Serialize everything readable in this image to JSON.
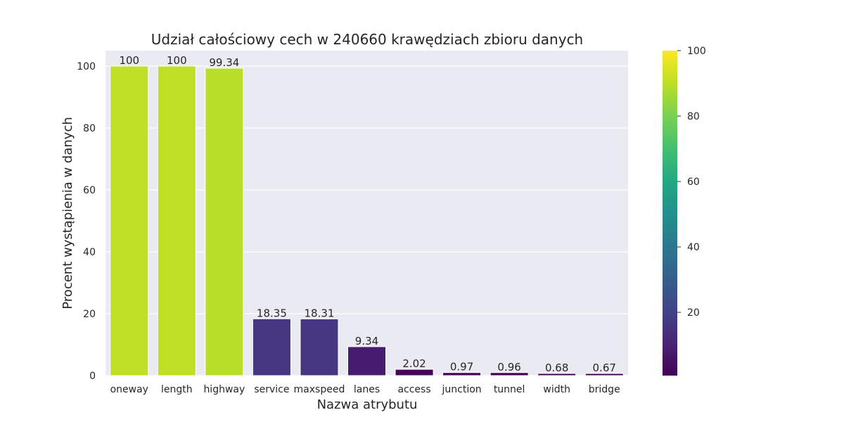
{
  "chart_data": {
    "type": "bar",
    "title": "Udział całościowy cech w 240660 krawędziach zbioru danych",
    "xlabel": "Nazwa atrybutu",
    "ylabel": "Procent wystąpienia w danych",
    "categories": [
      "oneway",
      "length",
      "highway",
      "service",
      "maxspeed",
      "lanes",
      "access",
      "junction",
      "tunnel",
      "width",
      "bridge"
    ],
    "values": [
      100,
      100,
      99.34,
      18.35,
      18.31,
      9.34,
      2.02,
      0.97,
      0.96,
      0.68,
      0.67
    ],
    "value_labels": [
      "100",
      "100",
      "99.34",
      "18.35",
      "18.31",
      "9.34",
      "2.02",
      "0.97",
      "0.96",
      "0.68",
      "0.67"
    ],
    "ylim": [
      0,
      105
    ],
    "yticks": [
      0,
      20,
      40,
      60,
      80,
      100
    ],
    "grid": true,
    "colormap": "viridis",
    "colorbar": {
      "range": [
        0.67,
        100
      ],
      "ticks": [
        20,
        40,
        60,
        80,
        100
      ]
    },
    "colors": {
      "plot_background": "#eaeaf2",
      "grid": "#ffffff",
      "text": "#262626"
    }
  }
}
